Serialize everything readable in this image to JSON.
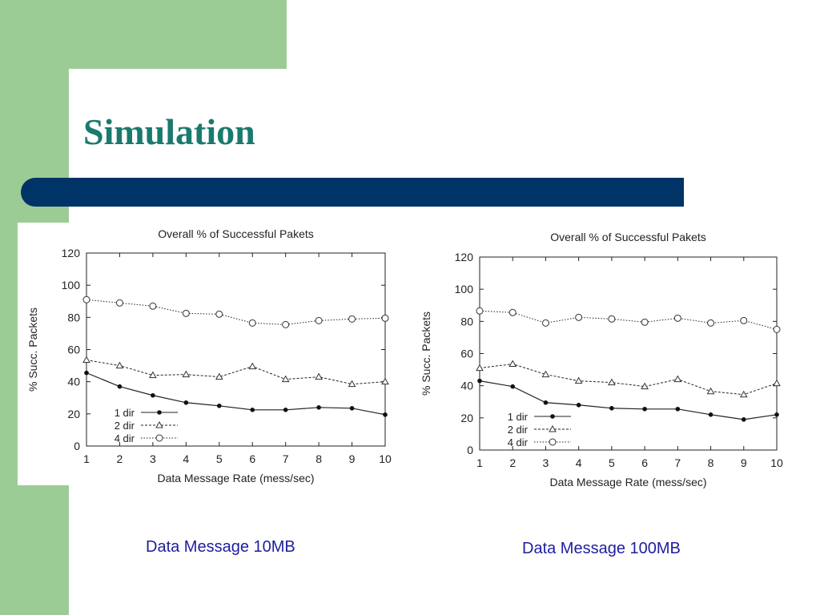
{
  "slide": {
    "title": "Simulation",
    "colors": {
      "side": "#9ccc96",
      "bar": "#003366",
      "title": "#1a7a6e",
      "caption": "#1e1e9e"
    }
  },
  "captions": [
    "Data Message 10MB",
    "Data Message 100MB"
  ],
  "chart_data": [
    {
      "type": "line",
      "title": "Overall % of Successful Pakets",
      "xlabel": "Data Message Rate (mess/sec)",
      "ylabel": "% Succ. Packets",
      "x": [
        1,
        2,
        3,
        4,
        5,
        6,
        7,
        8,
        9,
        10
      ],
      "xlim": [
        1,
        10
      ],
      "ylim": [
        0,
        120
      ],
      "yticks": [
        0,
        20,
        40,
        60,
        80,
        100,
        120
      ],
      "grid": false,
      "legend": "bottom-left",
      "series": [
        {
          "name": "1 dir",
          "marker": "dot",
          "values": [
            45.5,
            37,
            31.5,
            27,
            25,
            22.5,
            22.5,
            24,
            23.5,
            19.5
          ]
        },
        {
          "name": "2 dir",
          "marker": "triangle",
          "values": [
            53.5,
            50,
            44,
            44.5,
            43,
            49.5,
            41.5,
            43,
            38.5,
            40
          ]
        },
        {
          "name": "4 dir",
          "marker": "circle",
          "values": [
            91,
            89,
            87,
            82.5,
            82,
            76.5,
            75.5,
            78,
            79,
            79.5
          ]
        }
      ]
    },
    {
      "type": "line",
      "title": "Overall % of Successful Pakets",
      "xlabel": "Data Message Rate (mess/sec)",
      "ylabel": "% Succ. Packets",
      "x": [
        1,
        2,
        3,
        4,
        5,
        6,
        7,
        8,
        9,
        10
      ],
      "xlim": [
        1,
        10
      ],
      "ylim": [
        0,
        120
      ],
      "yticks": [
        0,
        20,
        40,
        60,
        80,
        100,
        120
      ],
      "grid": false,
      "legend": "bottom-left",
      "series": [
        {
          "name": "1 dir",
          "marker": "dot",
          "values": [
            43,
            39.5,
            29.5,
            28,
            26,
            25.5,
            25.5,
            22,
            19,
            22
          ]
        },
        {
          "name": "2 dir",
          "marker": "triangle",
          "values": [
            51,
            53.5,
            47,
            43,
            42,
            39.5,
            44,
            36.5,
            34.5,
            41.5
          ]
        },
        {
          "name": "4 dir",
          "marker": "circle",
          "values": [
            86.5,
            85.5,
            79,
            82.5,
            81.5,
            79.5,
            82,
            79,
            80.5,
            75
          ]
        }
      ]
    }
  ]
}
